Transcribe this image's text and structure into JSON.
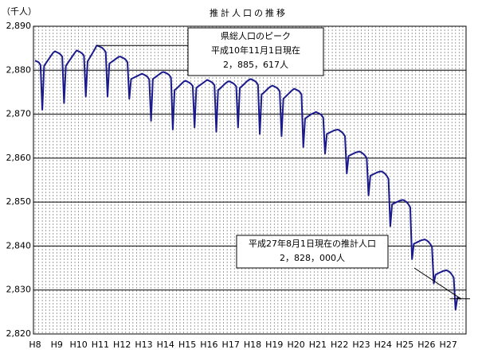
{
  "chart_data": {
    "type": "line",
    "title": "推計人口の推移",
    "y_label": "（千人）",
    "color": "#1a1a8c",
    "grid": true,
    "ylim": [
      2820,
      2890
    ],
    "yticks": [
      {
        "value": 2820,
        "label": "2,820"
      },
      {
        "value": 2830,
        "label": "2,830"
      },
      {
        "value": 2840,
        "label": "2,840"
      },
      {
        "value": 2850,
        "label": "2,850"
      },
      {
        "value": 2860,
        "label": "2,860"
      },
      {
        "value": 2870,
        "label": "2,870"
      },
      {
        "value": 2880,
        "label": "2,880"
      },
      {
        "value": 2890,
        "label": "2,890"
      }
    ],
    "categories": [
      "H8",
      null,
      null,
      null,
      null,
      null,
      null,
      null,
      null,
      null,
      null,
      null,
      "H9",
      null,
      null,
      null,
      null,
      null,
      null,
      null,
      null,
      null,
      null,
      null,
      "H10",
      null,
      null,
      null,
      null,
      null,
      null,
      null,
      null,
      null,
      null,
      null,
      "H11",
      null,
      null,
      null,
      null,
      null,
      null,
      null,
      null,
      null,
      null,
      null,
      "H12",
      null,
      null,
      null,
      null,
      null,
      null,
      null,
      null,
      null,
      null,
      null,
      "H13",
      null,
      null,
      null,
      null,
      null,
      null,
      null,
      null,
      null,
      null,
      null,
      "H14",
      null,
      null,
      null,
      null,
      null,
      null,
      null,
      null,
      null,
      null,
      null,
      "H15",
      null,
      null,
      null,
      null,
      null,
      null,
      null,
      null,
      null,
      null,
      null,
      "H16",
      null,
      null,
      null,
      null,
      null,
      null,
      null,
      null,
      null,
      null,
      null,
      "H17",
      null,
      null,
      null,
      null,
      null,
      null,
      null,
      null,
      null,
      null,
      null,
      "H18",
      null,
      null,
      null,
      null,
      null,
      null,
      null,
      null,
      null,
      null,
      null,
      "H19",
      null,
      null,
      null,
      null,
      null,
      null,
      null,
      null,
      null,
      null,
      null,
      "H20",
      null,
      null,
      null,
      null,
      null,
      null,
      null,
      null,
      null,
      null,
      null,
      "H21",
      null,
      null,
      null,
      null,
      null,
      null,
      null,
      null,
      null,
      null,
      null,
      "H22",
      null,
      null,
      null,
      null,
      null,
      null,
      null,
      null,
      null,
      null,
      null,
      "H23",
      null,
      null,
      null,
      null,
      null,
      null,
      null,
      null,
      null,
      null,
      null,
      "H24",
      null,
      null,
      null,
      null,
      null,
      null,
      null,
      null,
      null,
      null,
      null,
      "H25",
      null,
      null,
      null,
      null,
      null,
      null,
      null,
      null,
      null,
      null,
      null,
      "H26",
      null,
      null,
      null,
      null,
      null,
      null,
      null,
      null,
      null,
      null,
      null,
      "H27",
      null,
      null,
      null,
      null,
      null,
      null,
      null
    ],
    "values": [
      2882.2,
      2882.0,
      2881.8,
      2881.2,
      2871.0,
      2881.0,
      2881.6,
      2882.2,
      2882.8,
      2883.4,
      2884.0,
      2884.3,
      2884.1,
      2883.9,
      2883.6,
      2883.1,
      2872.5,
      2881.0,
      2881.6,
      2882.2,
      2882.8,
      2883.4,
      2884.0,
      2884.5,
      2884.3,
      2884.1,
      2883.8,
      2883.3,
      2874.0,
      2882.0,
      2882.7,
      2883.4,
      2884.1,
      2884.8,
      2885.617,
      2885.5,
      2885.3,
      2885.1,
      2884.7,
      2884.1,
      2874.0,
      2881.5,
      2881.8,
      2882.1,
      2882.4,
      2882.7,
      2883.0,
      2883.1,
      2882.9,
      2882.7,
      2882.4,
      2881.8,
      2873.5,
      2878.0,
      2878.2,
      2878.4,
      2878.6,
      2878.8,
      2879.0,
      2879.2,
      2879.0,
      2878.8,
      2878.5,
      2877.9,
      2868.5,
      2878.0,
      2878.3,
      2878.6,
      2878.9,
      2879.2,
      2879.5,
      2879.6,
      2879.4,
      2879.2,
      2878.9,
      2878.3,
      2866.5,
      2875.5,
      2875.8,
      2876.2,
      2876.6,
      2877.0,
      2877.4,
      2877.6,
      2877.4,
      2877.2,
      2876.9,
      2876.4,
      2867.0,
      2876.0,
      2876.3,
      2876.6,
      2876.9,
      2877.2,
      2877.5,
      2877.8,
      2877.6,
      2877.4,
      2877.1,
      2876.6,
      2866.0,
      2875.5,
      2875.8,
      2876.2,
      2876.6,
      2877.0,
      2877.3,
      2877.5,
      2877.3,
      2877.1,
      2876.8,
      2876.3,
      2867.0,
      2876.0,
      2876.3,
      2876.7,
      2877.1,
      2877.5,
      2877.8,
      2878.0,
      2877.8,
      2877.6,
      2877.3,
      2876.7,
      2865.5,
      2874.5,
      2874.8,
      2875.2,
      2875.6,
      2876.0,
      2876.3,
      2876.5,
      2876.3,
      2876.1,
      2875.8,
      2875.2,
      2865.0,
      2873.5,
      2873.9,
      2874.3,
      2874.7,
      2875.1,
      2875.5,
      2875.8,
      2875.6,
      2875.4,
      2875.1,
      2874.5,
      2862.5,
      2869.0,
      2869.3,
      2869.6,
      2869.9,
      2870.1,
      2870.3,
      2870.5,
      2870.3,
      2870.1,
      2869.8,
      2869.2,
      2861.0,
      2865.5,
      2865.7,
      2865.9,
      2866.1,
      2866.3,
      2866.4,
      2866.5,
      2866.3,
      2866.0,
      2865.6,
      2865.0,
      2856.5,
      2860.5,
      2860.7,
      2860.9,
      2861.1,
      2861.3,
      2861.4,
      2861.5,
      2861.3,
      2861.0,
      2860.6,
      2860.0,
      2851.5,
      2856.0,
      2856.2,
      2856.4,
      2856.6,
      2856.8,
      2856.9,
      2857.0,
      2856.8,
      2856.5,
      2856.0,
      2855.3,
      2844.5,
      2849.5,
      2849.7,
      2849.9,
      2850.1,
      2850.3,
      2850.4,
      2850.5,
      2850.3,
      2850.0,
      2849.5,
      2848.8,
      2837.0,
      2840.5,
      2840.7,
      2840.9,
      2841.1,
      2841.3,
      2841.4,
      2841.5,
      2841.3,
      2841.0,
      2840.5,
      2839.8,
      2831.5,
      2833.5,
      2833.7,
      2833.9,
      2834.1,
      2834.3,
      2834.4,
      2834.5,
      2834.3,
      2834.0,
      2833.5,
      2832.8,
      2825.5,
      2828.2,
      2828.1,
      2828.0
    ],
    "annotations": [
      {
        "lines": [
          "県総人口のピーク",
          "平成10年11月1日現在",
          "2，885，617人"
        ]
      },
      {
        "lines": [
          "平成27年8月1日現在の推計人口",
          "2，828，000人"
        ]
      }
    ]
  }
}
